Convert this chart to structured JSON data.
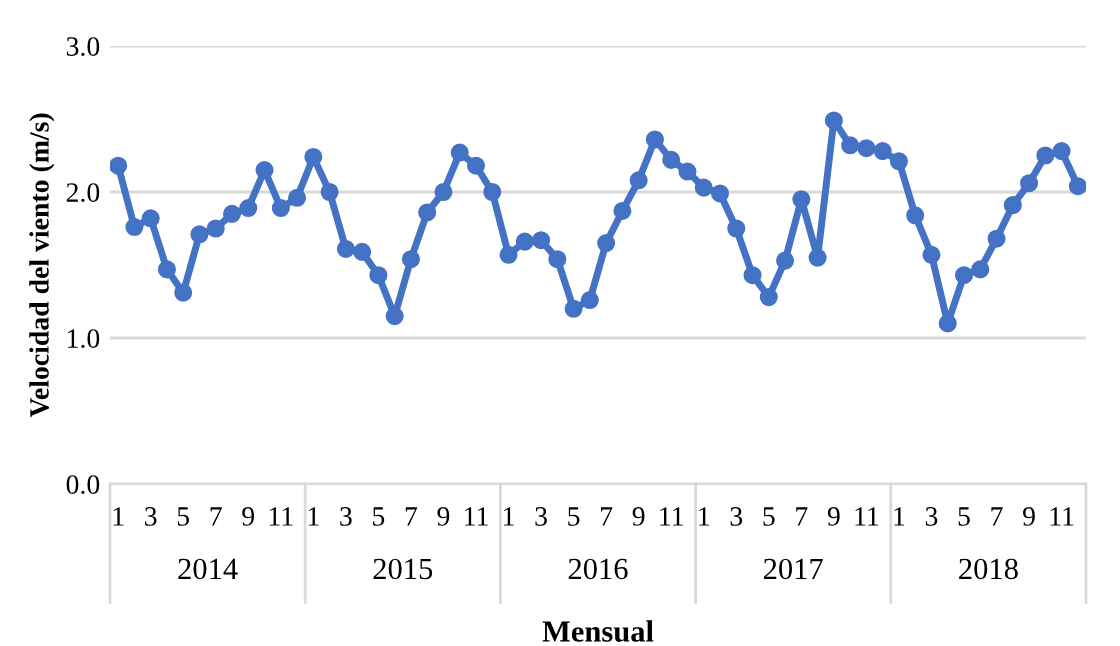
{
  "chart_data": {
    "type": "line",
    "xlabel": "Mensual",
    "ylabel": "Velocidad del viento (m/s)",
    "categories": [
      "1",
      null,
      "3",
      null,
      "5",
      null,
      "7",
      null,
      "9",
      null,
      "11",
      null,
      "1",
      null,
      "3",
      null,
      "5",
      null,
      "7",
      null,
      "9",
      null,
      "11",
      null,
      "1",
      null,
      "3",
      null,
      "5",
      null,
      "7",
      null,
      "9",
      null,
      "11",
      null,
      "1",
      null,
      "3",
      null,
      "5",
      null,
      "7",
      null,
      "9",
      null,
      "11",
      null,
      "1",
      null,
      "3",
      null,
      "5",
      null,
      "7",
      null,
      "9",
      null,
      "11",
      null
    ],
    "annotations": [
      "2014",
      "2015",
      "2016",
      "2017",
      "2018"
    ],
    "series": [
      {
        "color": "#4472c4",
        "values": [
          2.18,
          1.76,
          1.82,
          1.47,
          1.31,
          1.71,
          1.75,
          1.85,
          1.89,
          2.15,
          1.89,
          1.96,
          2.24,
          2.0,
          1.61,
          1.59,
          1.43,
          1.15,
          1.54,
          1.86,
          2.0,
          2.27,
          2.18,
          2.0,
          1.57,
          1.66,
          1.67,
          1.54,
          1.2,
          1.26,
          1.65,
          1.87,
          2.08,
          2.36,
          2.22,
          2.14,
          2.03,
          1.99,
          1.75,
          1.43,
          1.28,
          1.53,
          1.95,
          1.55,
          2.49,
          2.32,
          2.3,
          2.28,
          2.21,
          1.84,
          1.57,
          1.1,
          1.43,
          1.47,
          1.68,
          1.91,
          2.06,
          2.25,
          2.28,
          2.04
        ]
      }
    ],
    "ylim": [
      0,
      3
    ],
    "yticks": [
      {
        "value": 0,
        "label": "0.0"
      },
      {
        "value": 1,
        "label": "1.0"
      },
      {
        "value": 2,
        "label": "2.0"
      },
      {
        "value": 3,
        "label": "3.0"
      }
    ],
    "grid": "y",
    "marker": "circle",
    "line_style": "solid",
    "legend": false
  }
}
